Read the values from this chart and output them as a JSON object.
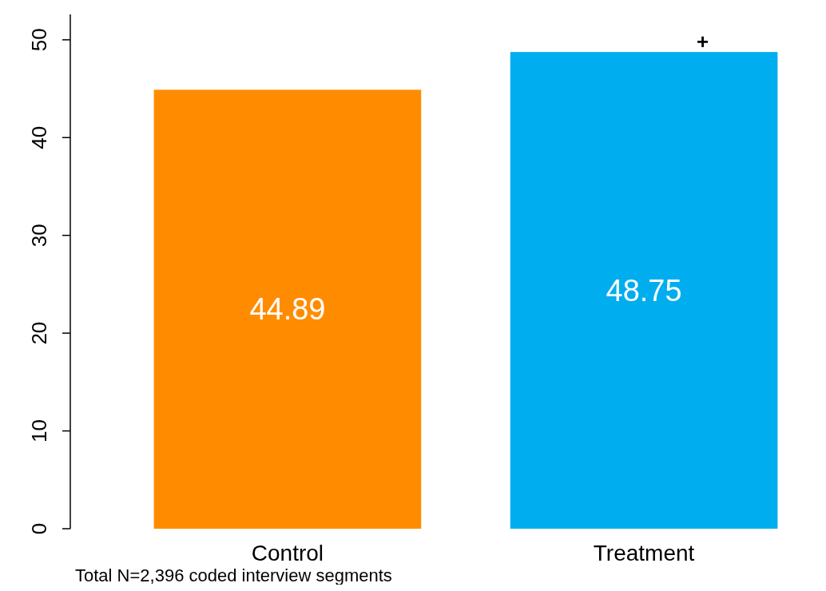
{
  "chart_data": {
    "type": "bar",
    "categories": [
      "Control",
      "Treatment"
    ],
    "values": [
      44.89,
      48.75
    ],
    "colors": [
      "#ff8c00",
      "#00adef"
    ],
    "ylim": [
      0,
      52.6
    ],
    "yticks": [
      0,
      10,
      20,
      30,
      40,
      50
    ],
    "data_labels": true,
    "grid": false,
    "annotations": [
      {
        "text": "+",
        "x": "Treatment",
        "y": 48.75
      },
      "Total N=2,396 coded interview segments"
    ]
  }
}
